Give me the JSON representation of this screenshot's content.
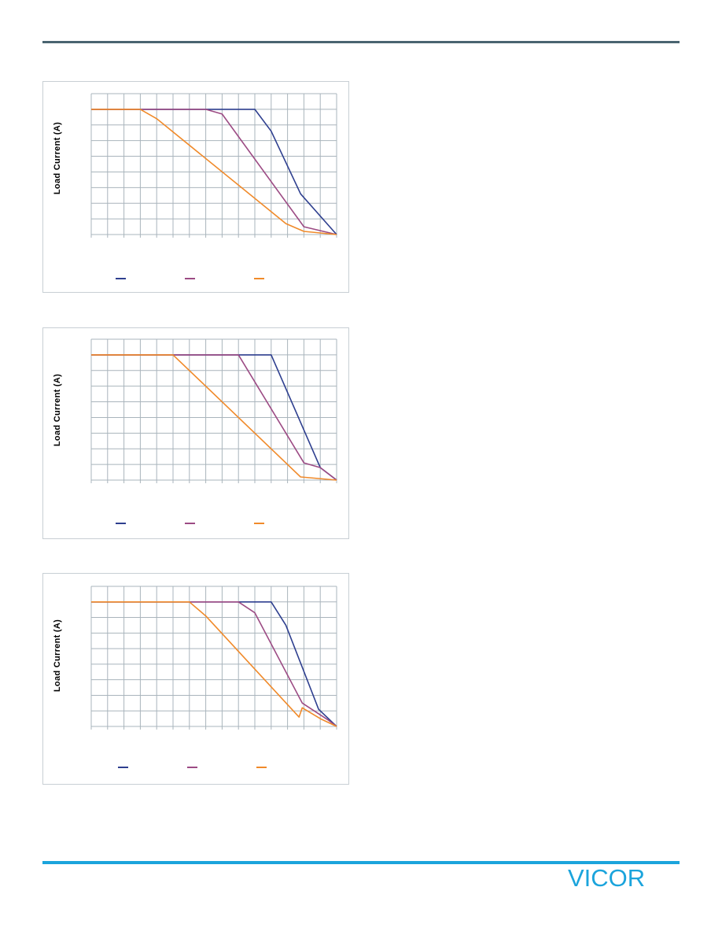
{
  "brand": {
    "logo_text": "VICOR",
    "logo_color": "#1ba4dc",
    "top_rule_color": "#4a6470",
    "bottom_rule_color": "#1ba4dc"
  },
  "colors": {
    "grid": "#a9b4bc",
    "series": [
      "#2e3f8f",
      "#9c4b84",
      "#f08a2a"
    ]
  },
  "chart_data": [
    {
      "type": "line",
      "ylabel": "Load Current (A)",
      "xlim": [
        0,
        15
      ],
      "ylim": [
        0,
        9
      ],
      "legend": "bottom",
      "grid": true,
      "series": [
        {
          "points": [
            [
              0,
              8
            ],
            [
              10,
              8
            ],
            [
              11,
              6.6
            ],
            [
              12.8,
              2.6
            ],
            [
              15,
              0
            ]
          ]
        },
        {
          "points": [
            [
              0,
              8
            ],
            [
              7,
              8
            ],
            [
              8,
              7.7
            ],
            [
              13,
              0.5
            ],
            [
              15,
              0
            ]
          ]
        },
        {
          "points": [
            [
              0,
              8
            ],
            [
              3,
              8
            ],
            [
              4,
              7.4
            ],
            [
              11.9,
              0.7
            ],
            [
              13,
              0.2
            ],
            [
              15,
              0
            ]
          ]
        }
      ]
    },
    {
      "type": "line",
      "ylabel": "Load Current (A)",
      "xlim": [
        0,
        15
      ],
      "ylim": [
        0,
        9
      ],
      "legend": "bottom",
      "grid": true,
      "series": [
        {
          "points": [
            [
              0,
              8
            ],
            [
              11,
              8
            ],
            [
              14,
              0.8
            ],
            [
              15,
              0
            ]
          ]
        },
        {
          "points": [
            [
              0,
              8
            ],
            [
              9,
              8
            ],
            [
              13,
              1.1
            ],
            [
              14,
              0.8
            ],
            [
              15,
              0
            ]
          ]
        },
        {
          "points": [
            [
              0,
              8
            ],
            [
              5,
              8
            ],
            [
              12.8,
              0.2
            ],
            [
              15,
              0
            ]
          ]
        }
      ]
    },
    {
      "type": "line",
      "ylabel": "Load Current (A)",
      "xlim": [
        0,
        15
      ],
      "ylim": [
        0,
        9
      ],
      "legend": "bottom",
      "grid": true,
      "series": [
        {
          "points": [
            [
              0,
              8
            ],
            [
              11,
              8
            ],
            [
              11.9,
              6.5
            ],
            [
              13.9,
              1.1
            ],
            [
              15,
              0
            ]
          ]
        },
        {
          "points": [
            [
              0,
              8
            ],
            [
              9,
              8
            ],
            [
              10,
              7.3
            ],
            [
              12.9,
              1.5
            ],
            [
              14.5,
              0.4
            ],
            [
              15,
              0
            ]
          ]
        },
        {
          "points": [
            [
              0,
              8
            ],
            [
              6,
              8
            ],
            [
              7,
              7.1
            ],
            [
              12.7,
              0.6
            ],
            [
              12.9,
              1.2
            ],
            [
              14,
              0.5
            ],
            [
              15,
              0
            ]
          ]
        }
      ]
    }
  ]
}
